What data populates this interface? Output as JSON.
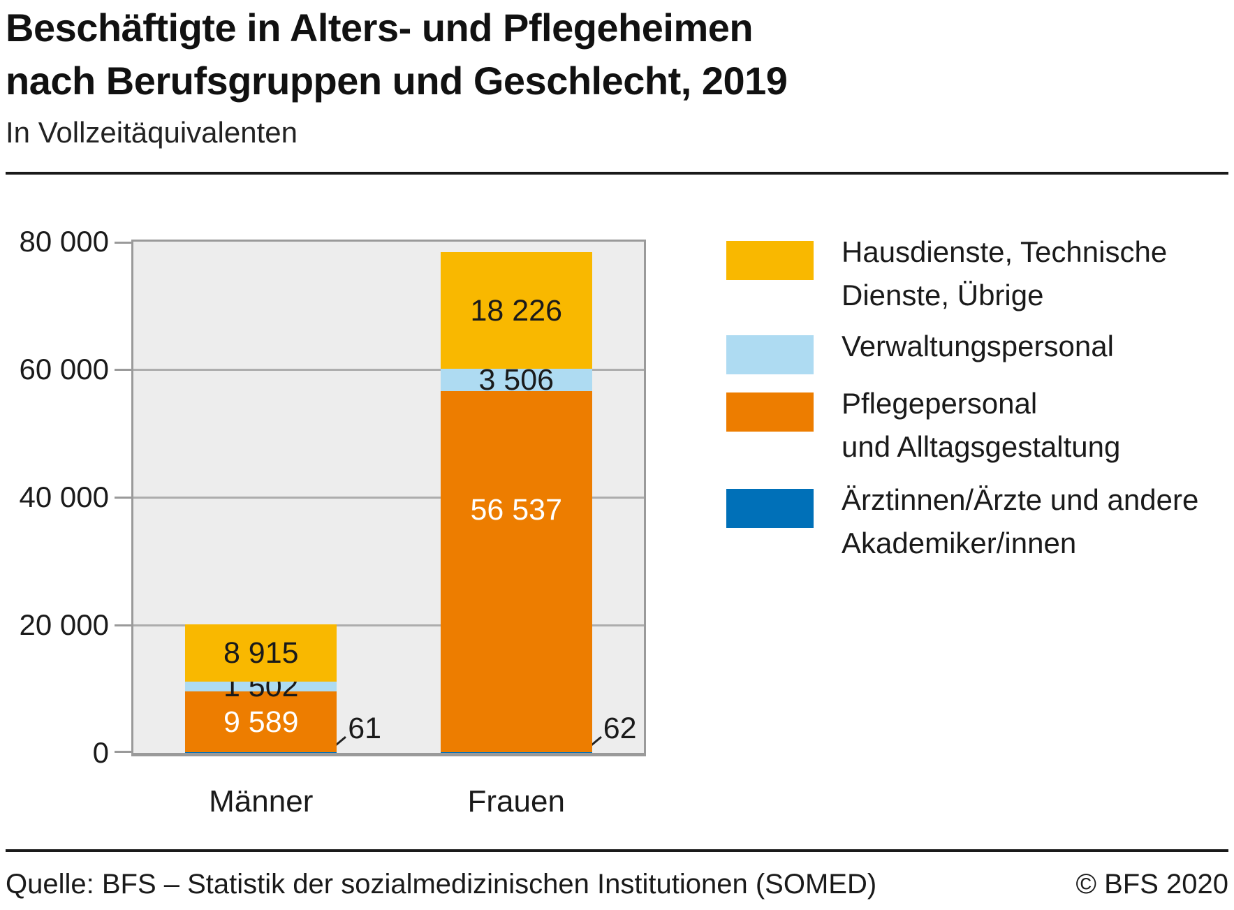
{
  "header": {
    "title_line1": "Beschäftigte in Alters- und Pflegeheimen",
    "title_line2": "nach Berufsgruppen und Geschlecht, 2019",
    "subtitle": "In Vollzeitäquivalenten"
  },
  "footer": {
    "source": "Quelle: BFS – Statistik der sozialmedizinischen Institutionen (SOMED)",
    "copyright": "© BFS 2020"
  },
  "colors": {
    "yellow": "#f9b800",
    "light_blue": "#aedbf2",
    "orange": "#ed7d00",
    "dark_blue": "#0070b8",
    "plot_bg": "#ededed",
    "grid": "#adadad",
    "axis": "#9a9a9a",
    "label_dark": "#1a1a1a",
    "label_light": "#ffffff"
  },
  "chart_data": {
    "type": "bar",
    "stacked": true,
    "title": "Beschäftigte in Alters- und Pflegeheimen nach Berufsgruppen und Geschlecht, 2019",
    "subtitle": "In Vollzeitäquivalenten",
    "categories": [
      "Männer",
      "Frauen"
    ],
    "series": [
      {
        "name": "Ärztinnen/Ärzte und andere Akademiker/innen",
        "color_key": "dark_blue",
        "values": [
          61,
          62
        ],
        "labels": [
          "61",
          "62"
        ],
        "label_style": "callout"
      },
      {
        "name": "Pflegepersonal und Alltagsgestaltung",
        "color_key": "orange",
        "values": [
          9589,
          56537
        ],
        "labels": [
          "9 589",
          "56 537"
        ],
        "label_color": "light"
      },
      {
        "name": "Verwaltungspersonal",
        "color_key": "light_blue",
        "values": [
          1502,
          3506
        ],
        "labels": [
          "1 502",
          "3 506"
        ],
        "label_color": "dark"
      },
      {
        "name": "Hausdienste, Technische Dienste, Übrige",
        "color_key": "yellow",
        "values": [
          8915,
          18226
        ],
        "labels": [
          "8 915",
          "18 226"
        ],
        "label_color": "dark"
      }
    ],
    "ylim": [
      0,
      80000
    ],
    "yticks": [
      {
        "value": 0,
        "label": "0"
      },
      {
        "value": 20000,
        "label": "20 000"
      },
      {
        "value": 40000,
        "label": "40 000"
      },
      {
        "value": 60000,
        "label": "60 000"
      },
      {
        "value": 80000,
        "label": "80 000"
      }
    ],
    "grid": true,
    "legend_position": "right"
  },
  "legend": {
    "items": [
      {
        "color_key": "yellow",
        "lines": [
          "Hausdienste, Technische",
          "Dienste, Übrige"
        ]
      },
      {
        "color_key": "light_blue",
        "lines": [
          "Verwaltungspersonal"
        ]
      },
      {
        "color_key": "orange",
        "lines": [
          "Pflegepersonal",
          "und Alltagsgestaltung"
        ]
      },
      {
        "color_key": "dark_blue",
        "lines": [
          "Ärztinnen/Ärzte und andere",
          "Akademiker/innen"
        ]
      }
    ]
  }
}
